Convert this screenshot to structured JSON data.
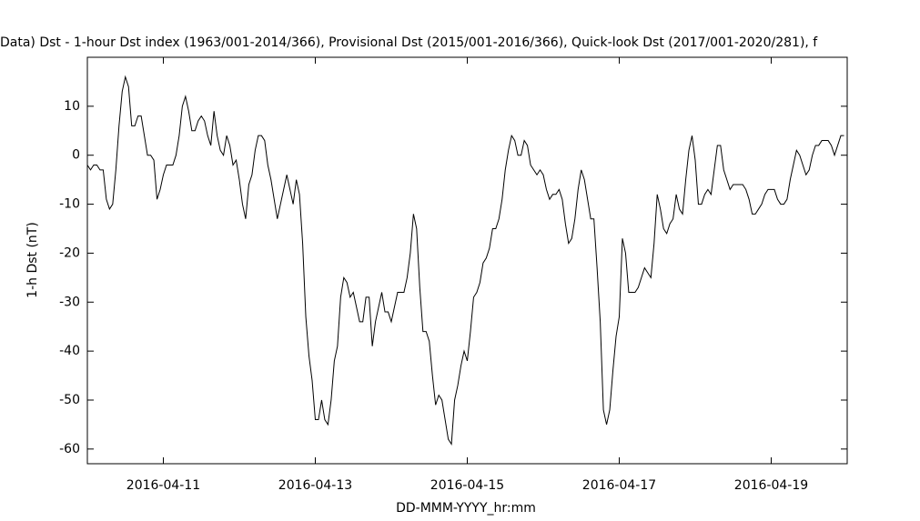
{
  "chart_data": {
    "type": "line",
    "title": "Data)  Dst - 1-hour Dst index (1963/001-2014/366), Provisional Dst (2015/001-2016/366), Quick-look Dst (2017/001-2020/281), f",
    "xlabel": "DD-MMM-YYYY_hr:mm",
    "ylabel": "1-h Dst (nT)",
    "xlim": [
      "2016-04-10T00:00",
      "2016-04-19T23:00"
    ],
    "xticks": [
      {
        "value": "2016-04-11T00:00",
        "label": "2016-04-11"
      },
      {
        "value": "2016-04-13T00:00",
        "label": "2016-04-13"
      },
      {
        "value": "2016-04-15T00:00",
        "label": "2016-04-15"
      },
      {
        "value": "2016-04-17T00:00",
        "label": "2016-04-17"
      },
      {
        "value": "2016-04-19T00:00",
        "label": "2016-04-19"
      }
    ],
    "ylim": [
      -63,
      20
    ],
    "yticks": [
      -60,
      -50,
      -40,
      -30,
      -20,
      -10,
      0,
      10
    ],
    "x": [
      "2016-04-10T00:00",
      "2016-04-10T01:00",
      "2016-04-10T02:00",
      "2016-04-10T03:00",
      "2016-04-10T04:00",
      "2016-04-10T05:00",
      "2016-04-10T06:00",
      "2016-04-10T07:00",
      "2016-04-10T08:00",
      "2016-04-10T09:00",
      "2016-04-10T10:00",
      "2016-04-10T11:00",
      "2016-04-10T12:00",
      "2016-04-10T13:00",
      "2016-04-10T14:00",
      "2016-04-10T15:00",
      "2016-04-10T16:00",
      "2016-04-10T17:00",
      "2016-04-10T18:00",
      "2016-04-10T19:00",
      "2016-04-10T20:00",
      "2016-04-10T21:00",
      "2016-04-10T22:00",
      "2016-04-10T23:00",
      "2016-04-11T00:00",
      "2016-04-11T01:00",
      "2016-04-11T02:00",
      "2016-04-11T03:00",
      "2016-04-11T04:00",
      "2016-04-11T05:00",
      "2016-04-11T06:00",
      "2016-04-11T07:00",
      "2016-04-11T08:00",
      "2016-04-11T09:00",
      "2016-04-11T10:00",
      "2016-04-11T11:00",
      "2016-04-11T12:00",
      "2016-04-11T13:00",
      "2016-04-11T14:00",
      "2016-04-11T15:00",
      "2016-04-11T16:00",
      "2016-04-11T17:00",
      "2016-04-11T18:00",
      "2016-04-11T19:00",
      "2016-04-11T20:00",
      "2016-04-11T21:00",
      "2016-04-11T22:00",
      "2016-04-11T23:00",
      "2016-04-12T00:00",
      "2016-04-12T01:00",
      "2016-04-12T02:00",
      "2016-04-12T03:00",
      "2016-04-12T04:00",
      "2016-04-12T05:00",
      "2016-04-12T06:00",
      "2016-04-12T07:00",
      "2016-04-12T08:00",
      "2016-04-12T09:00",
      "2016-04-12T10:00",
      "2016-04-12T11:00",
      "2016-04-12T12:00",
      "2016-04-12T13:00",
      "2016-04-12T14:00",
      "2016-04-12T15:00",
      "2016-04-12T16:00",
      "2016-04-12T17:00",
      "2016-04-12T18:00",
      "2016-04-12T19:00",
      "2016-04-12T20:00",
      "2016-04-12T21:00",
      "2016-04-12T22:00",
      "2016-04-12T23:00",
      "2016-04-13T00:00",
      "2016-04-13T01:00",
      "2016-04-13T02:00",
      "2016-04-13T03:00",
      "2016-04-13T04:00",
      "2016-04-13T05:00",
      "2016-04-13T06:00",
      "2016-04-13T07:00",
      "2016-04-13T08:00",
      "2016-04-13T09:00",
      "2016-04-13T10:00",
      "2016-04-13T11:00",
      "2016-04-13T12:00",
      "2016-04-13T13:00",
      "2016-04-13T14:00",
      "2016-04-13T15:00",
      "2016-04-13T16:00",
      "2016-04-13T17:00",
      "2016-04-13T18:00",
      "2016-04-13T19:00",
      "2016-04-13T20:00",
      "2016-04-13T21:00",
      "2016-04-13T22:00",
      "2016-04-13T23:00",
      "2016-04-14T00:00",
      "2016-04-14T01:00",
      "2016-04-14T02:00",
      "2016-04-14T03:00",
      "2016-04-14T04:00",
      "2016-04-14T05:00",
      "2016-04-14T06:00",
      "2016-04-14T07:00",
      "2016-04-14T08:00",
      "2016-04-14T09:00",
      "2016-04-14T10:00",
      "2016-04-14T11:00",
      "2016-04-14T12:00",
      "2016-04-14T13:00",
      "2016-04-14T14:00",
      "2016-04-14T15:00",
      "2016-04-14T16:00",
      "2016-04-14T17:00",
      "2016-04-14T18:00",
      "2016-04-14T19:00",
      "2016-04-14T20:00",
      "2016-04-14T21:00",
      "2016-04-14T22:00",
      "2016-04-14T23:00",
      "2016-04-15T00:00",
      "2016-04-15T01:00",
      "2016-04-15T02:00",
      "2016-04-15T03:00",
      "2016-04-15T04:00",
      "2016-04-15T05:00",
      "2016-04-15T06:00",
      "2016-04-15T07:00",
      "2016-04-15T08:00",
      "2016-04-15T09:00",
      "2016-04-15T10:00",
      "2016-04-15T11:00",
      "2016-04-15T12:00",
      "2016-04-15T13:00",
      "2016-04-15T14:00",
      "2016-04-15T15:00",
      "2016-04-15T16:00",
      "2016-04-15T17:00",
      "2016-04-15T18:00",
      "2016-04-15T19:00",
      "2016-04-15T20:00",
      "2016-04-15T21:00",
      "2016-04-15T22:00",
      "2016-04-15T23:00",
      "2016-04-16T00:00",
      "2016-04-16T01:00",
      "2016-04-16T02:00",
      "2016-04-16T03:00",
      "2016-04-16T04:00",
      "2016-04-16T05:00",
      "2016-04-16T06:00",
      "2016-04-16T07:00",
      "2016-04-16T08:00",
      "2016-04-16T09:00",
      "2016-04-16T10:00",
      "2016-04-16T11:00",
      "2016-04-16T12:00",
      "2016-04-16T13:00",
      "2016-04-16T14:00",
      "2016-04-16T15:00",
      "2016-04-16T16:00",
      "2016-04-16T17:00",
      "2016-04-16T18:00",
      "2016-04-16T19:00",
      "2016-04-16T20:00",
      "2016-04-16T21:00",
      "2016-04-16T22:00",
      "2016-04-16T23:00",
      "2016-04-17T00:00",
      "2016-04-17T01:00",
      "2016-04-17T02:00",
      "2016-04-17T03:00",
      "2016-04-17T04:00",
      "2016-04-17T05:00",
      "2016-04-17T06:00",
      "2016-04-17T07:00",
      "2016-04-17T08:00",
      "2016-04-17T09:00",
      "2016-04-17T10:00",
      "2016-04-17T11:00",
      "2016-04-17T12:00",
      "2016-04-17T13:00",
      "2016-04-17T14:00",
      "2016-04-17T15:00",
      "2016-04-17T16:00",
      "2016-04-17T17:00",
      "2016-04-17T18:00",
      "2016-04-17T19:00",
      "2016-04-17T20:00",
      "2016-04-17T21:00",
      "2016-04-17T22:00",
      "2016-04-17T23:00",
      "2016-04-18T00:00",
      "2016-04-18T01:00",
      "2016-04-18T02:00",
      "2016-04-18T03:00",
      "2016-04-18T04:00",
      "2016-04-18T05:00",
      "2016-04-18T06:00",
      "2016-04-18T07:00",
      "2016-04-18T08:00",
      "2016-04-18T09:00",
      "2016-04-18T10:00",
      "2016-04-18T11:00",
      "2016-04-18T12:00",
      "2016-04-18T13:00",
      "2016-04-18T14:00",
      "2016-04-18T15:00",
      "2016-04-18T16:00",
      "2016-04-18T17:00",
      "2016-04-18T18:00",
      "2016-04-18T19:00",
      "2016-04-18T20:00",
      "2016-04-18T21:00",
      "2016-04-18T22:00",
      "2016-04-18T23:00",
      "2016-04-19T00:00",
      "2016-04-19T01:00",
      "2016-04-19T02:00",
      "2016-04-19T03:00",
      "2016-04-19T04:00",
      "2016-04-19T05:00",
      "2016-04-19T06:00",
      "2016-04-19T07:00",
      "2016-04-19T08:00",
      "2016-04-19T09:00",
      "2016-04-19T10:00",
      "2016-04-19T11:00",
      "2016-04-19T12:00",
      "2016-04-19T13:00",
      "2016-04-19T14:00",
      "2016-04-19T15:00",
      "2016-04-19T16:00",
      "2016-04-19T17:00",
      "2016-04-19T18:00",
      "2016-04-19T19:00",
      "2016-04-19T20:00",
      "2016-04-19T21:00",
      "2016-04-19T22:00",
      "2016-04-19T23:00"
    ],
    "series": [
      {
        "color": "#000000",
        "values": [
          -2,
          -3,
          -2,
          -2,
          -3,
          -3,
          -9,
          -11,
          -10,
          -3,
          6,
          13,
          16,
          14,
          6,
          6,
          8,
          8,
          4,
          0,
          0,
          -1,
          -9,
          -7,
          -4,
          -2,
          -2,
          -2,
          0,
          4,
          10,
          12,
          9,
          5,
          5,
          7,
          8,
          7,
          4,
          2,
          9,
          4,
          1,
          0,
          4,
          2,
          -2,
          -1,
          -5,
          -10,
          -13,
          -6,
          -4,
          1,
          4,
          4,
          3,
          -2,
          -5,
          -9,
          -13,
          -10,
          -7,
          -4,
          -7,
          -10,
          -5,
          -8,
          -18,
          -33,
          -41,
          -46,
          -54,
          -54,
          -50,
          -54,
          -55,
          -50,
          -42,
          -39,
          -29,
          -25,
          -26,
          -29,
          -28,
          -31,
          -34,
          -34,
          -29,
          -29,
          -39,
          -34,
          -31,
          -28,
          -32,
          -32,
          -34,
          -31,
          -28,
          -28,
          -28,
          -25,
          -20,
          -12,
          -15,
          -27,
          -36,
          -36,
          -38,
          -45,
          -51,
          -49,
          -50,
          -54,
          -58,
          -59,
          -50,
          -47,
          -43,
          -40,
          -42,
          -36,
          -29,
          -28,
          -26,
          -22,
          -21,
          -19,
          -15,
          -15,
          -13,
          -9,
          -3,
          1,
          4,
          3,
          0,
          0,
          3,
          2,
          -2,
          -3,
          -4,
          -3,
          -4,
          -7,
          -9,
          -8,
          -8,
          -7,
          -9,
          -14,
          -18,
          -17,
          -13,
          -7,
          -3,
          -5,
          -9,
          -13,
          -13,
          -23,
          -34,
          -52,
          -55,
          -52,
          -44,
          -37,
          -33,
          -17,
          -20,
          -28,
          -28,
          -28,
          -27,
          -25,
          -23,
          -24,
          -25,
          -18,
          -8,
          -11,
          -15,
          -16,
          -14,
          -13,
          -8,
          -11,
          -12,
          -5,
          1,
          4,
          -1,
          -10,
          -10,
          -8,
          -7,
          -8,
          -3,
          2,
          2,
          -3,
          -5,
          -7,
          -6,
          -6,
          -6,
          -6,
          -7,
          -9,
          -12,
          -12,
          -11,
          -10,
          -8,
          -7,
          -7,
          -7,
          -9,
          -10,
          -10,
          -9,
          -5,
          -2,
          1,
          0,
          -2,
          -4,
          -3,
          0,
          2,
          2,
          3,
          3,
          3,
          2,
          0,
          2,
          4,
          4
        ]
      }
    ]
  }
}
